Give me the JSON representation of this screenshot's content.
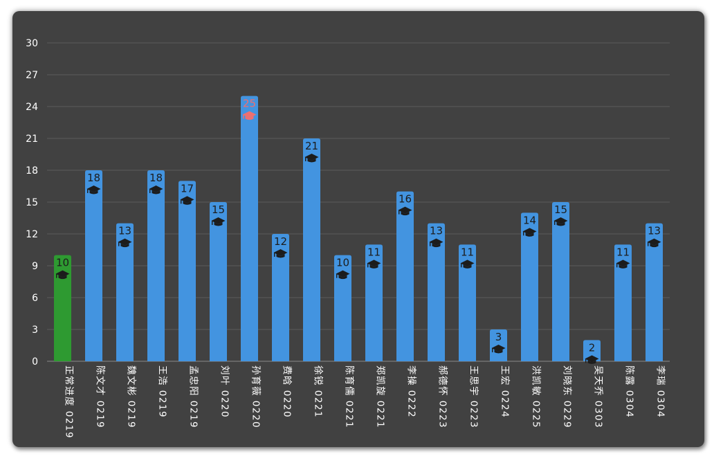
{
  "chart_data": {
    "type": "bar",
    "categories": [
      "正常进度 0219",
      "陈文才 0219",
      "魏文彬 0219",
      "王浩 0219",
      "孟忠阳 0219",
      "刘叶 0220",
      "孙育薇 0220",
      "费晗 0220",
      "徐锐 0221",
      "陈育儒 0221",
      "郑凯旋 0221",
      "李操 0222",
      "郝德怀 0223",
      "王思宇 0223",
      "王宏 0224",
      "洪凯敏 0225",
      "刘晓东 0229",
      "吴天乔 0303",
      "陈露 0304",
      "李瑞 0304"
    ],
    "values": [
      10,
      18,
      13,
      18,
      17,
      15,
      25,
      12,
      21,
      10,
      11,
      16,
      13,
      11,
      3,
      14,
      15,
      2,
      11,
      13
    ],
    "ylim": [
      0,
      30
    ],
    "yticks": [
      0,
      3,
      6,
      9,
      12,
      15,
      18,
      21,
      24,
      27,
      30
    ],
    "grid": true,
    "legend": "none",
    "title": "",
    "xlabel": "",
    "ylabel": "",
    "colors": {
      "bar": "#4394e0",
      "baseline_bar": "#2e9a31",
      "highlight_label": "#ee6f6f",
      "label": "#1c1c1c",
      "background": "#414141",
      "gridline": "#5c5c5c",
      "tick_text": "#ffffff"
    },
    "baseline_index": 0,
    "highlight_index": 6,
    "marker_icon": "graduation-cap-icon"
  }
}
